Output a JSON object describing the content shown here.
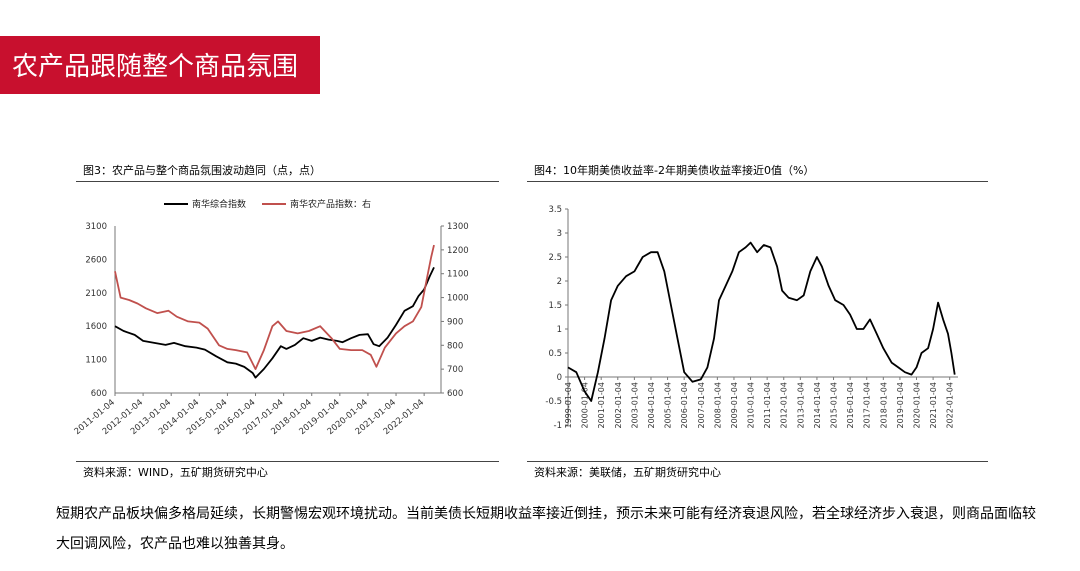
{
  "header": {
    "title": "农产品跟随整个商品氛围"
  },
  "left": {
    "caption": "图3：农产品与整个商品氛围波动趋同（点，点）",
    "source": "资料来源：WIND，五矿期货研究中心"
  },
  "right": {
    "caption": "图4：10年期美债收益率-2年期美债收益率接近0值（%）",
    "source": "资料来源：美联储，五矿期货研究中心"
  },
  "paragraph": "短期农产品板块偏多格局延续，长期警惕宏观环境扰动。当前美债长短期收益率接近倒挂，预示未来可能有经济衰退风险，若全球经济步入衰退，则商品面临较大回调风险，农产品也难以独善其身。",
  "chart_data": [
    {
      "type": "line",
      "x_ticks": [
        "2011-01-04",
        "2012-01-04",
        "2013-01-04",
        "2014-01-04",
        "2015-01-04",
        "2016-01-04",
        "2017-01-04",
        "2018-01-04",
        "2019-01-04",
        "2020-01-04",
        "2021-01-04",
        "2022-01-04"
      ],
      "ylim": [
        600,
        3100
      ],
      "y_ticks": [
        600,
        1100,
        1600,
        2100,
        2600,
        3100
      ],
      "y2lim": [
        600,
        1300
      ],
      "y2_ticks": [
        600,
        700,
        800,
        900,
        1000,
        1100,
        1200,
        1300
      ],
      "legend_position": "top",
      "series": [
        {
          "name": "南华综合指数",
          "axis": "left",
          "color": "#000000",
          "points": [
            [
              2011.0,
              1600
            ],
            [
              2011.3,
              1530
            ],
            [
              2011.7,
              1470
            ],
            [
              2012.0,
              1380
            ],
            [
              2012.4,
              1350
            ],
            [
              2012.8,
              1320
            ],
            [
              2013.1,
              1350
            ],
            [
              2013.5,
              1300
            ],
            [
              2013.9,
              1280
            ],
            [
              2014.2,
              1250
            ],
            [
              2014.6,
              1150
            ],
            [
              2015.0,
              1060
            ],
            [
              2015.3,
              1040
            ],
            [
              2015.6,
              990
            ],
            [
              2015.9,
              900
            ],
            [
              2016.0,
              830
            ],
            [
              2016.3,
              960
            ],
            [
              2016.6,
              1120
            ],
            [
              2016.9,
              1300
            ],
            [
              2017.1,
              1260
            ],
            [
              2017.4,
              1320
            ],
            [
              2017.7,
              1420
            ],
            [
              2018.0,
              1380
            ],
            [
              2018.3,
              1430
            ],
            [
              2018.6,
              1400
            ],
            [
              2018.9,
              1380
            ],
            [
              2019.1,
              1360
            ],
            [
              2019.4,
              1420
            ],
            [
              2019.7,
              1470
            ],
            [
              2020.0,
              1480
            ],
            [
              2020.2,
              1330
            ],
            [
              2020.4,
              1300
            ],
            [
              2020.7,
              1430
            ],
            [
              2021.0,
              1620
            ],
            [
              2021.3,
              1830
            ],
            [
              2021.6,
              1900
            ],
            [
              2021.8,
              2050
            ],
            [
              2022.0,
              2150
            ],
            [
              2022.2,
              2350
            ],
            [
              2022.35,
              2480
            ]
          ]
        },
        {
          "name": "南华农产品指数：右",
          "axis": "right",
          "color": "#c0504d",
          "points": [
            [
              2011.0,
              1110
            ],
            [
              2011.2,
              1000
            ],
            [
              2011.5,
              990
            ],
            [
              2011.8,
              975
            ],
            [
              2012.1,
              955
            ],
            [
              2012.5,
              935
            ],
            [
              2012.9,
              945
            ],
            [
              2013.2,
              920
            ],
            [
              2013.6,
              900
            ],
            [
              2014.0,
              895
            ],
            [
              2014.3,
              870
            ],
            [
              2014.7,
              800
            ],
            [
              2015.0,
              785
            ],
            [
              2015.3,
              780
            ],
            [
              2015.7,
              770
            ],
            [
              2016.0,
              700
            ],
            [
              2016.3,
              780
            ],
            [
              2016.6,
              880
            ],
            [
              2016.8,
              900
            ],
            [
              2017.1,
              860
            ],
            [
              2017.5,
              850
            ],
            [
              2017.9,
              860
            ],
            [
              2018.3,
              880
            ],
            [
              2018.7,
              830
            ],
            [
              2019.0,
              785
            ],
            [
              2019.4,
              780
            ],
            [
              2019.8,
              780
            ],
            [
              2020.1,
              760
            ],
            [
              2020.3,
              710
            ],
            [
              2020.6,
              790
            ],
            [
              2021.0,
              850
            ],
            [
              2021.3,
              880
            ],
            [
              2021.6,
              900
            ],
            [
              2021.9,
              960
            ],
            [
              2022.1,
              1080
            ],
            [
              2022.25,
              1170
            ],
            [
              2022.35,
              1220
            ]
          ]
        }
      ]
    },
    {
      "type": "line",
      "x_ticks": [
        "1999-01-04",
        "2000-01-04",
        "2001-01-04",
        "2002-01-04",
        "2003-01-04",
        "2004-01-04",
        "2005-01-04",
        "2006-01-04",
        "2007-01-04",
        "2008-01-04",
        "2009-01-04",
        "2010-01-04",
        "2011-01-04",
        "2012-01-04",
        "2013-01-04",
        "2014-01-04",
        "2015-01-04",
        "2016-01-04",
        "2017-01-04",
        "2018-01-04",
        "2019-01-04",
        "2020-01-04",
        "2021-01-04",
        "2022-01-04"
      ],
      "ylim": [
        -1,
        3.5
      ],
      "y_ticks": [
        -1,
        -0.5,
        0,
        0.5,
        1,
        1.5,
        2,
        2.5,
        3,
        3.5
      ],
      "y_tick_labels": [
        "-1",
        "-0.5",
        "0",
        "0.5",
        "1",
        "1.5",
        "2",
        "2.5",
        "3",
        "3.5"
      ],
      "series": [
        {
          "color": "#000000",
          "points": [
            [
              1999.0,
              0.2
            ],
            [
              1999.5,
              0.1
            ],
            [
              2000.0,
              -0.3
            ],
            [
              2000.4,
              -0.5
            ],
            [
              2000.8,
              0.1
            ],
            [
              2001.2,
              0.8
            ],
            [
              2001.6,
              1.6
            ],
            [
              2002.0,
              1.9
            ],
            [
              2002.5,
              2.1
            ],
            [
              2003.0,
              2.2
            ],
            [
              2003.5,
              2.5
            ],
            [
              2004.0,
              2.6
            ],
            [
              2004.4,
              2.6
            ],
            [
              2004.8,
              2.2
            ],
            [
              2005.2,
              1.5
            ],
            [
              2005.6,
              0.8
            ],
            [
              2006.0,
              0.1
            ],
            [
              2006.5,
              -0.1
            ],
            [
              2007.0,
              -0.05
            ],
            [
              2007.4,
              0.2
            ],
            [
              2007.8,
              0.8
            ],
            [
              2008.1,
              1.6
            ],
            [
              2008.5,
              1.9
            ],
            [
              2008.9,
              2.2
            ],
            [
              2009.3,
              2.6
            ],
            [
              2009.7,
              2.7
            ],
            [
              2010.0,
              2.8
            ],
            [
              2010.4,
              2.6
            ],
            [
              2010.8,
              2.75
            ],
            [
              2011.2,
              2.7
            ],
            [
              2011.6,
              2.3
            ],
            [
              2011.9,
              1.8
            ],
            [
              2012.3,
              1.65
            ],
            [
              2012.8,
              1.6
            ],
            [
              2013.2,
              1.7
            ],
            [
              2013.6,
              2.2
            ],
            [
              2014.0,
              2.5
            ],
            [
              2014.3,
              2.3
            ],
            [
              2014.7,
              1.9
            ],
            [
              2015.1,
              1.6
            ],
            [
              2015.6,
              1.5
            ],
            [
              2016.0,
              1.3
            ],
            [
              2016.4,
              1.0
            ],
            [
              2016.8,
              1.0
            ],
            [
              2017.2,
              1.2
            ],
            [
              2017.6,
              0.9
            ],
            [
              2018.0,
              0.6
            ],
            [
              2018.5,
              0.3
            ],
            [
              2018.9,
              0.2
            ],
            [
              2019.3,
              0.1
            ],
            [
              2019.7,
              0.05
            ],
            [
              2020.0,
              0.2
            ],
            [
              2020.3,
              0.5
            ],
            [
              2020.7,
              0.6
            ],
            [
              2021.0,
              1.0
            ],
            [
              2021.3,
              1.55
            ],
            [
              2021.6,
              1.2
            ],
            [
              2021.9,
              0.9
            ],
            [
              2022.1,
              0.5
            ],
            [
              2022.3,
              0.05
            ]
          ]
        }
      ]
    }
  ]
}
